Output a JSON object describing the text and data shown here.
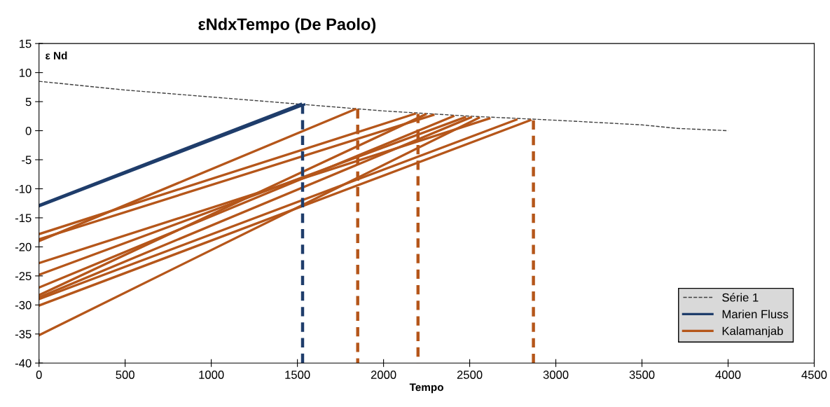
{
  "chart_data": {
    "type": "line",
    "title": "εNdxTempo (De Paolo)",
    "xlabel": "Tempo",
    "annotations": [
      "ε Nd"
    ],
    "xlim": [
      0,
      4500
    ],
    "xticks": [
      0,
      500,
      1000,
      1500,
      2000,
      2500,
      3000,
      3500,
      4000,
      4500
    ],
    "ylim": [
      -40,
      15
    ],
    "yticks": [
      -40,
      -35,
      -30,
      -25,
      -20,
      -15,
      -10,
      -5,
      0,
      5,
      10,
      15
    ],
    "grid": false,
    "legend": "bottom right",
    "marker": "none",
    "series": [
      {
        "name": "Série 1",
        "color": "#404040",
        "line_style": "dashed",
        "x": [
          0,
          500,
          1000,
          1500,
          2000,
          2500,
          3000,
          3500,
          3700,
          4000
        ],
        "values": [
          8.5,
          7,
          5.8,
          4.6,
          3.4,
          2.5,
          1.8,
          1,
          0.4,
          0
        ]
      },
      {
        "name": "Marien Fluss",
        "color": "#1f3d6b",
        "line_style": "solid",
        "x": [
          0,
          1520
        ],
        "values": [
          -12.8,
          4.6
        ]
      },
      {
        "color": "#1f3d6b",
        "line_style": "solid",
        "x": [
          0,
          1540
        ],
        "values": [
          -13,
          4.5
        ]
      },
      {
        "name": "Kalamanjab",
        "color": "#b5561a",
        "line_style": "solid",
        "x": [
          0,
          2181
        ],
        "values": [
          -17.8,
          2.9
        ]
      },
      {
        "color": "#b5561a",
        "line_style": "solid",
        "x": [
          0,
          2289
        ],
        "values": [
          -18.7,
          2.7
        ]
      },
      {
        "color": "#b5561a",
        "line_style": "solid",
        "x": [
          0,
          1836
        ],
        "values": [
          -19,
          3.7
        ]
      },
      {
        "color": "#b5561a",
        "line_style": "solid",
        "x": [
          0,
          2614
        ],
        "values": [
          -22.8,
          2.1
        ]
      },
      {
        "color": "#b5561a",
        "line_style": "solid",
        "x": [
          0,
          2472
        ],
        "values": [
          -24.8,
          2.3
        ]
      },
      {
        "color": "#b5561a",
        "line_style": "solid",
        "x": [
          0,
          2405
        ],
        "values": [
          -27,
          2.5
        ]
      },
      {
        "color": "#b5561a",
        "line_style": "solid",
        "x": [
          0,
          2243
        ],
        "values": [
          -28.3,
          2.8
        ]
      },
      {
        "color": "#b5561a",
        "line_style": "solid",
        "x": [
          0,
          2507
        ],
        "values": [
          -28.7,
          2.3
        ]
      },
      {
        "color": "#b5561a",
        "line_style": "solid",
        "x": [
          0,
          2771
        ],
        "values": [
          -29,
          1.9
        ]
      },
      {
        "color": "#b5561a",
        "line_style": "solid",
        "x": [
          0,
          2852
        ],
        "values": [
          -30.1,
          1.8
        ]
      },
      {
        "color": "#b5561a",
        "line_style": "solid",
        "x": [
          0,
          2553
        ],
        "values": [
          -35.2,
          2.2
        ]
      },
      {
        "color": "#1f3d6b",
        "line_style": "dashed",
        "x": [
          1530,
          1530
        ],
        "values": [
          4.5,
          -40
        ]
      },
      {
        "color": "#b5561a",
        "line_style": "dashed",
        "x": [
          1850,
          1850
        ],
        "values": [
          3.7,
          -40
        ]
      },
      {
        "color": "#b5561a",
        "line_style": "dashed",
        "x": [
          2200,
          2200
        ],
        "values": [
          2.9,
          -40
        ]
      },
      {
        "color": "#b5561a",
        "line_style": "dashed",
        "x": [
          2870,
          2870
        ],
        "values": [
          1.8,
          -40
        ]
      }
    ]
  }
}
